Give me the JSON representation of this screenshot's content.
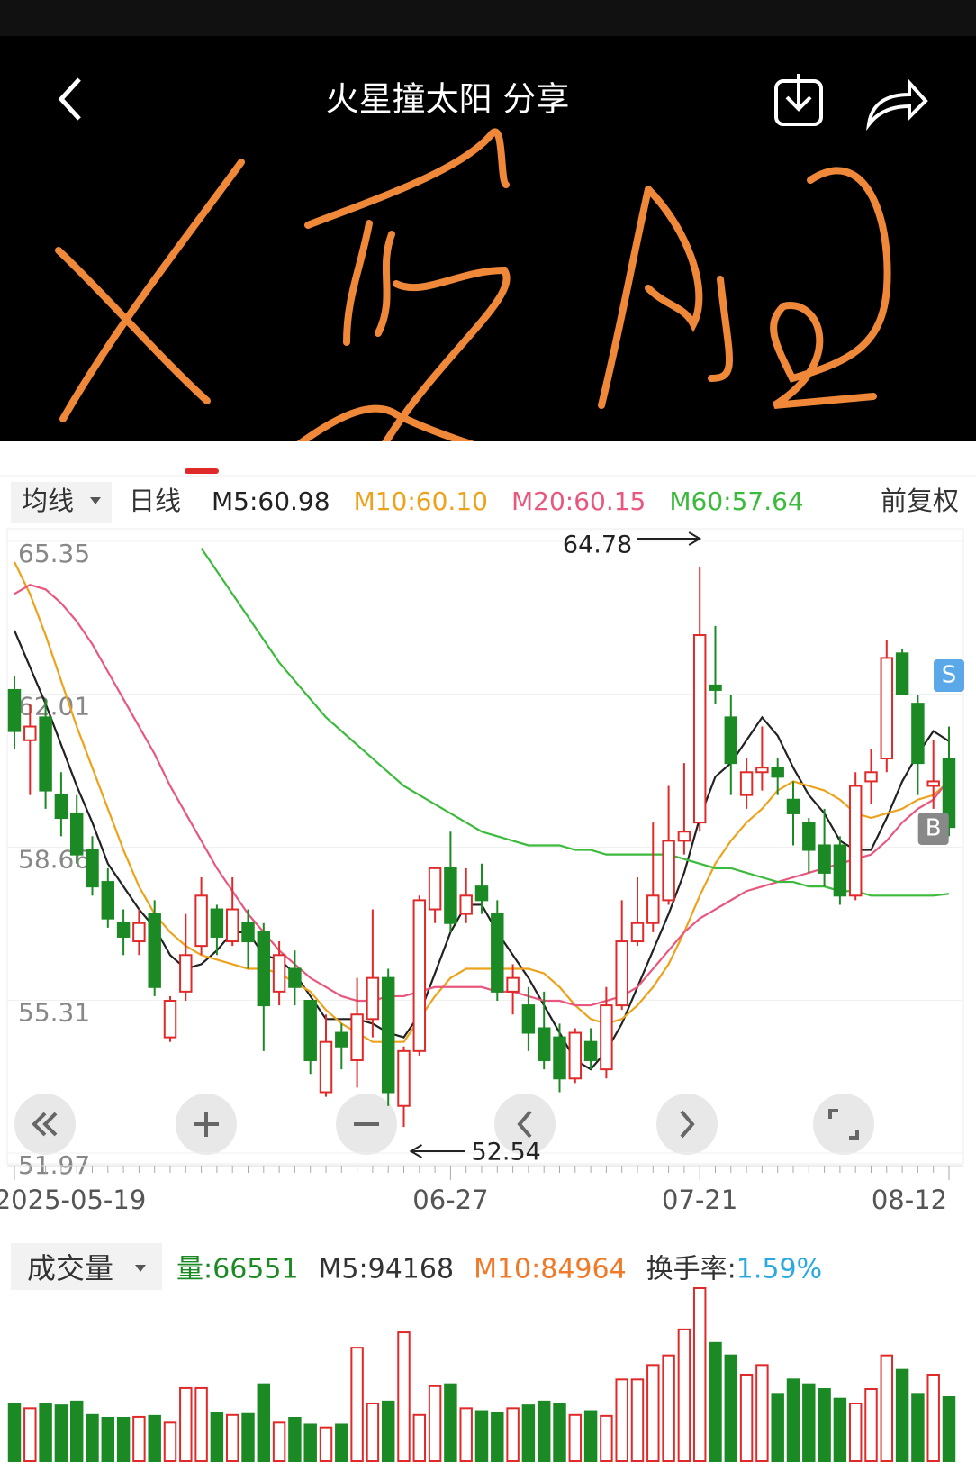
{
  "header": {
    "title": "火星撞太阳 分享"
  },
  "indicator_bar": {
    "selector": "均线",
    "period": "日线",
    "adjust": "前复权"
  },
  "chart_data": [
    {
      "type": "candlestick",
      "categories": [
        "2025-05-19",
        null,
        null,
        null,
        null,
        null,
        null,
        null,
        null,
        null,
        null,
        null,
        null,
        null,
        null,
        null,
        null,
        null,
        null,
        null,
        null,
        null,
        null,
        null,
        null,
        null,
        null,
        null,
        "06-27",
        null,
        null,
        null,
        null,
        null,
        null,
        null,
        null,
        null,
        null,
        null,
        null,
        null,
        null,
        null,
        "07-21",
        null,
        null,
        null,
        null,
        null,
        null,
        null,
        null,
        null,
        null,
        null,
        null,
        null,
        null,
        null,
        "08-12"
      ],
      "open": [
        62.1,
        61.0,
        61.5,
        59.8,
        59.4,
        58.6,
        57.9,
        57.0,
        56.6,
        57.2,
        54.5,
        55.5,
        56.5,
        57.3,
        56.6,
        57.0,
        56.8,
        55.5,
        56.0,
        55.3,
        53.3,
        54.6,
        54.0,
        54.9,
        55.8,
        53.0,
        54.2,
        57.3,
        58.2,
        57.2,
        57.8,
        57.2,
        55.5,
        55.2,
        54.7,
        54.5,
        53.6,
        54.4,
        53.8,
        55.2,
        56.6,
        57.0,
        57.5,
        58.8,
        59.2,
        62.2,
        61.5,
        59.8,
        60.3,
        60.4,
        59.7,
        59.2,
        58.7,
        58.7,
        57.6,
        60.1,
        60.6,
        62.9,
        61.8,
        60.0,
        60.6
      ],
      "high": [
        62.4,
        61.8,
        61.9,
        60.3,
        59.8,
        58.9,
        58.2,
        57.3,
        57.3,
        57.5,
        55.4,
        57.2,
        58.0,
        57.4,
        58.0,
        57.3,
        57.0,
        56.6,
        56.4,
        55.3,
        55.0,
        54.8,
        55.8,
        57.3,
        56.0,
        54.3,
        57.6,
        58.2,
        59.0,
        58.2,
        58.3,
        57.5,
        56.1,
        55.6,
        55.5,
        54.8,
        54.7,
        54.7,
        55.6,
        57.5,
        58.0,
        59.2,
        60.0,
        60.5,
        64.78,
        63.5,
        62.0,
        60.6,
        61.3,
        60.6,
        60.1,
        59.3,
        59.5,
        58.9,
        60.3,
        60.8,
        63.2,
        63.0,
        62.0,
        61.0,
        61.3
      ],
      "low": [
        60.8,
        59.8,
        59.5,
        58.9,
        58.3,
        57.6,
        56.9,
        56.3,
        56.3,
        55.4,
        54.4,
        55.3,
        56.3,
        56.3,
        56.5,
        56.0,
        54.2,
        55.2,
        55.2,
        53.7,
        53.2,
        53.8,
        53.4,
        54.5,
        53.0,
        52.54,
        54.1,
        57.0,
        56.8,
        57.0,
        57.2,
        55.3,
        55.0,
        54.2,
        53.8,
        53.3,
        53.5,
        53.8,
        53.6,
        55.1,
        56.5,
        56.8,
        57.4,
        58.5,
        59.0,
        61.8,
        59.8,
        59.5,
        59.9,
        59.8,
        58.7,
        58.1,
        57.8,
        57.4,
        57.5,
        59.6,
        60.3,
        62.0,
        59.8,
        59.5,
        58.9
      ],
      "close": [
        61.2,
        61.3,
        59.9,
        59.3,
        58.5,
        57.8,
        57.1,
        56.7,
        57.0,
        55.6,
        55.3,
        56.3,
        57.6,
        56.7,
        57.3,
        56.6,
        55.2,
        56.3,
        55.6,
        54.0,
        54.4,
        54.3,
        55.0,
        55.8,
        53.3,
        54.2,
        57.5,
        58.2,
        57.0,
        57.6,
        57.5,
        55.5,
        55.8,
        54.6,
        54.0,
        53.6,
        54.6,
        54.0,
        55.2,
        56.6,
        57.0,
        57.6,
        58.8,
        59.0,
        63.3,
        62.1,
        60.5,
        60.3,
        60.4,
        60.2,
        59.4,
        58.6,
        58.1,
        57.6,
        60.0,
        60.3,
        62.8,
        62.0,
        60.5,
        60.1,
        59.1
      ],
      "up_color": "#e02a2a",
      "down_color": "#1c8a24",
      "ma": [
        {
          "label": "M5:60.98",
          "color": "#222222",
          "values": [
            63.4,
            62.6,
            61.8,
            60.9,
            60.0,
            59.2,
            58.3,
            57.8,
            57.3,
            56.9,
            56.3,
            56.0,
            56.1,
            56.4,
            56.8,
            56.8,
            56.3,
            56.2,
            55.9,
            55.4,
            54.9,
            54.9,
            54.9,
            54.8,
            54.6,
            54.5,
            55.0,
            55.9,
            56.8,
            57.4,
            57.4,
            56.8,
            56.3,
            55.8,
            55.2,
            54.6,
            54.0,
            53.8,
            54.2,
            54.8,
            55.6,
            56.4,
            57.2,
            58.1,
            59.3,
            60.2,
            60.5,
            61.0,
            61.5,
            61.1,
            60.4,
            59.8,
            59.4,
            58.8,
            58.6,
            58.6,
            59.3,
            60.1,
            60.7,
            61.2,
            60.98
          ]
        },
        {
          "label": "M10:60.10",
          "color": "#eea21c",
          "values": [
            64.9,
            64.2,
            63.3,
            62.3,
            61.3,
            60.4,
            59.5,
            58.6,
            57.8,
            57.2,
            56.8,
            56.5,
            56.3,
            56.2,
            56.1,
            56.0,
            56.0,
            55.9,
            55.7,
            55.5,
            55.1,
            54.8,
            54.6,
            54.4,
            54.4,
            54.4,
            54.9,
            55.4,
            55.8,
            56.0,
            56.0,
            56.0,
            56.0,
            56.0,
            55.9,
            55.6,
            55.2,
            54.9,
            54.8,
            54.9,
            55.2,
            55.6,
            56.1,
            56.8,
            57.6,
            58.3,
            58.8,
            59.2,
            59.5,
            59.9,
            60.1,
            60.0,
            59.9,
            59.7,
            59.4,
            59.3,
            59.4,
            59.5,
            59.7,
            59.8,
            60.1
          ]
        },
        {
          "label": "M20:60.15",
          "color": "#e8577e",
          "values": [
            64.2,
            64.4,
            64.3,
            64.0,
            63.6,
            63.1,
            62.5,
            61.9,
            61.3,
            60.7,
            60.0,
            59.4,
            58.8,
            58.2,
            57.7,
            57.2,
            56.8,
            56.4,
            56.1,
            55.8,
            55.6,
            55.4,
            55.3,
            55.3,
            55.4,
            55.4,
            55.5,
            55.6,
            55.6,
            55.6,
            55.6,
            55.5,
            55.5,
            55.4,
            55.3,
            55.3,
            55.2,
            55.2,
            55.3,
            55.4,
            55.6,
            56.0,
            56.4,
            56.8,
            57.1,
            57.3,
            57.5,
            57.7,
            57.8,
            57.9,
            58.0,
            58.1,
            58.2,
            58.3,
            58.4,
            58.5,
            58.8,
            59.2,
            59.5,
            59.7,
            60.15
          ]
        },
        {
          "label": "M60:57.64",
          "color": "#3cba3c",
          "values": [
            null,
            null,
            null,
            null,
            null,
            null,
            null,
            null,
            null,
            null,
            null,
            null,
            65.2,
            64.7,
            64.2,
            63.7,
            63.2,
            62.7,
            62.3,
            61.9,
            61.5,
            61.2,
            60.9,
            60.6,
            60.3,
            60.0,
            59.8,
            59.6,
            59.4,
            59.2,
            59.0,
            58.9,
            58.8,
            58.7,
            58.7,
            58.7,
            58.6,
            58.6,
            58.5,
            58.5,
            58.5,
            58.5,
            58.5,
            58.4,
            58.3,
            58.2,
            58.2,
            58.1,
            58.0,
            57.9,
            57.9,
            57.8,
            57.8,
            57.7,
            57.7,
            57.6,
            57.6,
            57.6,
            57.6,
            57.6,
            57.64
          ]
        }
      ],
      "ylim": [
        51.97,
        65.35
      ],
      "yticks": [
        65.35,
        62.01,
        58.66,
        55.31,
        51.97
      ],
      "high_label": 64.78,
      "low_label": 52.54,
      "markers": [
        {
          "index": 60,
          "text": "S",
          "color": "#5aa8e8"
        },
        {
          "index": 59,
          "text": "B",
          "color": "#888888"
        }
      ]
    },
    {
      "type": "bar",
      "title": "成交量",
      "legend": [
        {
          "text": "量:66551",
          "color": "#1c8a24"
        },
        {
          "text": "M5:94168",
          "color": "#333333"
        },
        {
          "text": "M10:84964",
          "color": "#ee7a2a"
        },
        {
          "text": "换手率:",
          "color": "#333333"
        },
        {
          "text": "1.59%",
          "color": "#2aa8e0"
        }
      ],
      "values": [
        60000,
        55000,
        60000,
        58000,
        62000,
        48000,
        45000,
        45000,
        46000,
        47000,
        40000,
        76000,
        76000,
        50000,
        48000,
        49000,
        80000,
        40000,
        45000,
        38000,
        35000,
        38000,
        118000,
        60000,
        62000,
        134000,
        48000,
        78000,
        80000,
        55000,
        52000,
        50000,
        55000,
        58000,
        62000,
        60000,
        48000,
        52000,
        47000,
        85000,
        85000,
        100000,
        110000,
        137000,
        180000,
        123000,
        110000,
        90000,
        100000,
        70000,
        85000,
        80000,
        75000,
        65000,
        60000,
        75000,
        110000,
        95000,
        70000,
        90000,
        66551
      ]
    }
  ]
}
